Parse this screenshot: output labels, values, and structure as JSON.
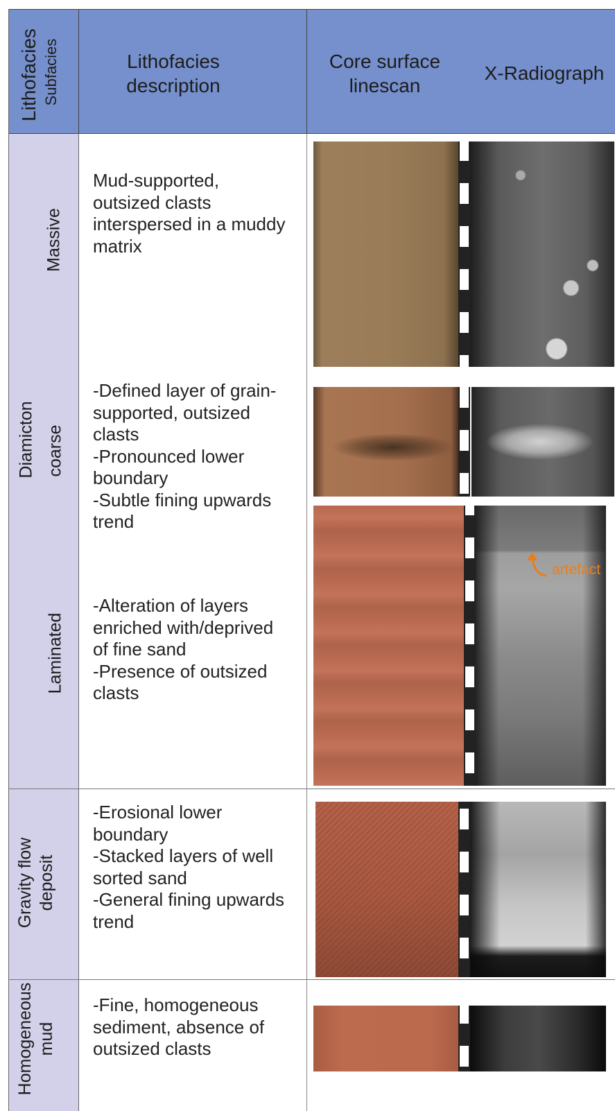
{
  "header": {
    "col1_main": "Lithofacies",
    "col1_sub": "Subfacies",
    "col2": "Lithofacies description",
    "col3": "Core surface linescan",
    "col4": "X-Radiograph"
  },
  "lithofacies": [
    {
      "name": "Diamicton"
    },
    {
      "name": "Gravity flow deposit"
    },
    {
      "name": "Homogeneous mud"
    }
  ],
  "subfacies": [
    {
      "name": "Massive",
      "description": "Mud-supported,\noutsized clasts\ninterspersed in a muddy\nmatrix"
    },
    {
      "name": "coarse",
      "description": "-Defined layer of grain-\nsupported, outsized\nclasts\n-Pronounced lower\nboundary\n-Subtle fining upwards\ntrend"
    },
    {
      "name": "Laminated",
      "description": "-Alteration of layers\nenriched with/deprived\nof fine sand\n-Presence of outsized\nclasts"
    }
  ],
  "gravity_flow": {
    "description": "-Erosional lower\nboundary\n-Stacked layers of well\nsorted sand\n-General fining upwards\ntrend"
  },
  "homogeneous": {
    "description": "-Fine, homogeneous\nsediment, absence of\noutsized clasts"
  },
  "annotation": {
    "label": "artefact",
    "color": "#e87f1c"
  },
  "colors": {
    "header_bg": "#7590cc",
    "side_bg": "#d3d0ea",
    "massive_scan": "#9a7a55",
    "coarse_scan": "#a46e4f",
    "laminated_scan": "#b8684e",
    "gravity_scan": "#b15f45",
    "homogeneous_scan": "#bd6b4f"
  }
}
